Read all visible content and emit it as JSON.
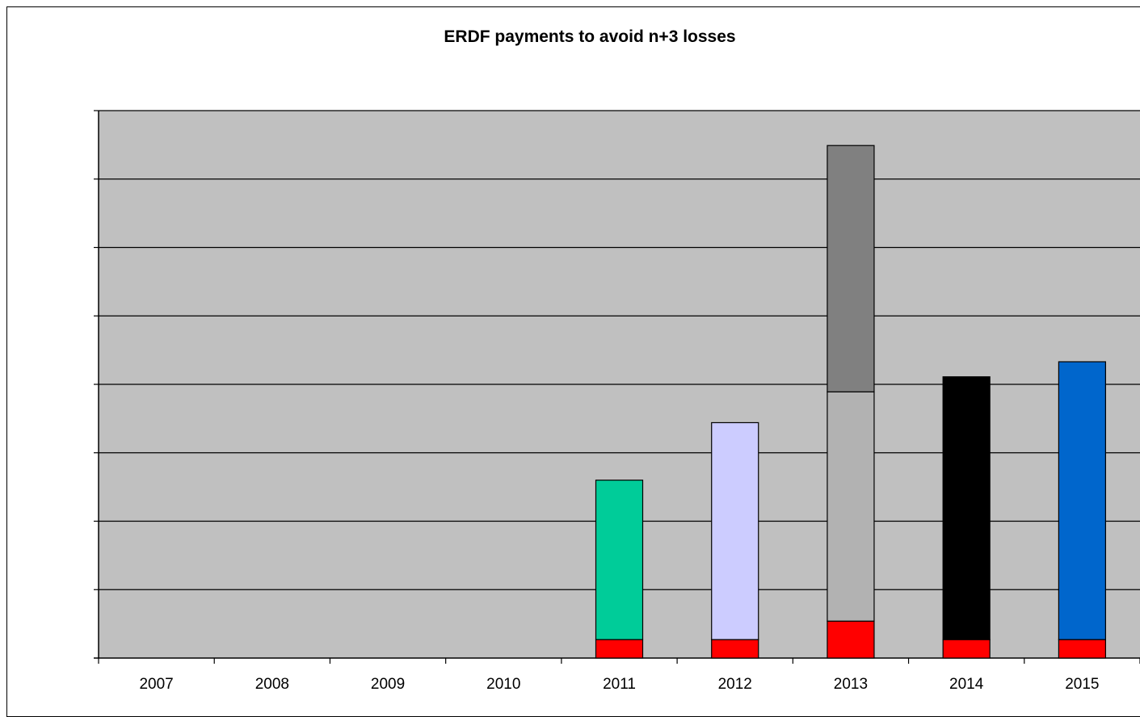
{
  "chart_data": {
    "type": "bar",
    "stacked": true,
    "title": "ERDF payments to avoid n+3 losses",
    "xlabel": "",
    "ylabel": "",
    "categories": [
      "2007",
      "2008",
      "2009",
      "2010",
      "2011",
      "2012",
      "2013",
      "2014",
      "2015"
    ],
    "ylim": [
      0,
      8
    ],
    "grid": true,
    "legend": "none",
    "y_tick_count": 8,
    "series": [
      {
        "color": "#ff0000",
        "values": [
          0,
          0,
          0,
          0,
          0.27,
          0.27,
          0.54,
          0.27,
          0.27
        ]
      },
      {
        "color": "#00cc99",
        "values": [
          0,
          0,
          0,
          0,
          2.33,
          0,
          0,
          0,
          0
        ]
      },
      {
        "color": "#ccccff",
        "values": [
          0,
          0,
          0,
          0,
          0,
          3.17,
          0,
          0,
          0
        ]
      },
      {
        "color": "#b2b2b2",
        "values": [
          0,
          0,
          0,
          0,
          0,
          0,
          3.35,
          0,
          0
        ]
      },
      {
        "color": "#808080",
        "values": [
          0,
          0,
          0,
          0,
          0,
          0,
          3.6,
          0,
          0
        ]
      },
      {
        "color": "#000000",
        "values": [
          0,
          0,
          0,
          0,
          0,
          0,
          0,
          3.84,
          0
        ]
      },
      {
        "color": "#0066cc",
        "values": [
          0,
          0,
          0,
          0,
          0,
          0,
          0,
          0,
          4.06
        ]
      }
    ],
    "plot_bg": "#c0c0c0"
  }
}
